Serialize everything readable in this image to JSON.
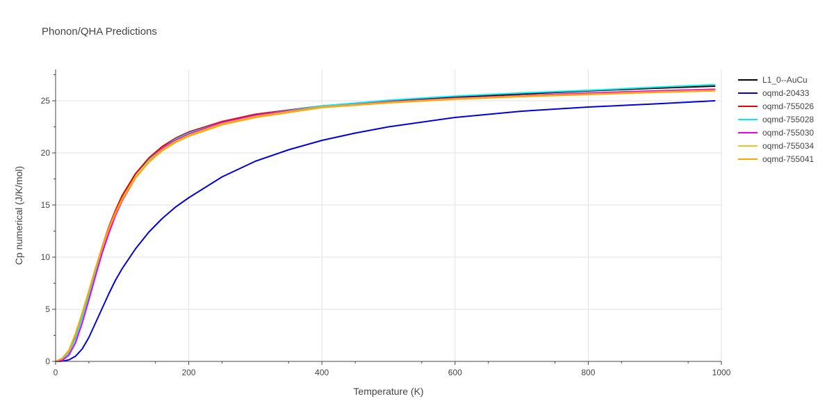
{
  "chart_data": {
    "type": "line",
    "title": "Phonon/QHA Predictions",
    "xlabel": "Temperature (K)",
    "ylabel": "Cp numerical (J/K/mol)",
    "xlim": [
      0,
      1000
    ],
    "ylim": [
      0,
      28
    ],
    "xticks": [
      0,
      200,
      400,
      600,
      800,
      1000
    ],
    "yticks": [
      0,
      5,
      10,
      15,
      20,
      25
    ],
    "grid": true,
    "legend_position": "top-right",
    "series": [
      {
        "name": "L1_0--AuCu",
        "color": "#000000",
        "x": [
          0,
          10,
          20,
          30,
          40,
          50,
          60,
          70,
          80,
          90,
          100,
          120,
          140,
          160,
          180,
          200,
          250,
          300,
          400,
          500,
          600,
          700,
          800,
          900,
          990
        ],
        "y": [
          0,
          0.2,
          0.9,
          2.4,
          4.4,
          6.6,
          8.9,
          11.0,
          12.9,
          14.5,
          15.9,
          18.0,
          19.5,
          20.6,
          21.4,
          22.0,
          23.0,
          23.7,
          24.5,
          25.0,
          25.35,
          25.65,
          25.95,
          26.2,
          26.4
        ]
      },
      {
        "name": "oqmd-20433",
        "color": "#0000dd",
        "x": [
          0,
          10,
          20,
          30,
          40,
          50,
          60,
          70,
          80,
          90,
          100,
          120,
          140,
          160,
          180,
          200,
          250,
          300,
          350,
          400,
          450,
          500,
          600,
          700,
          800,
          900,
          990
        ],
        "y": [
          0,
          0.02,
          0.15,
          0.5,
          1.2,
          2.3,
          3.7,
          5.1,
          6.5,
          7.8,
          8.9,
          10.8,
          12.4,
          13.7,
          14.8,
          15.7,
          17.7,
          19.2,
          20.3,
          21.2,
          21.9,
          22.5,
          23.4,
          24.0,
          24.4,
          24.7,
          25.0
        ]
      },
      {
        "name": "oqmd-755026",
        "color": "#ee0000",
        "x": [
          0,
          10,
          20,
          30,
          40,
          50,
          60,
          70,
          80,
          90,
          100,
          120,
          140,
          160,
          180,
          200,
          250,
          300,
          400,
          500,
          600,
          700,
          800,
          900,
          990
        ],
        "y": [
          0,
          0.2,
          0.9,
          2.4,
          4.4,
          6.6,
          8.9,
          11.0,
          12.9,
          14.5,
          15.9,
          18.0,
          19.5,
          20.6,
          21.4,
          22.0,
          23.0,
          23.7,
          24.5,
          24.9,
          25.25,
          25.5,
          25.7,
          25.9,
          26.1
        ]
      },
      {
        "name": "oqmd-755028",
        "color": "#00eeee",
        "x": [
          0,
          10,
          20,
          30,
          40,
          50,
          60,
          70,
          80,
          90,
          100,
          120,
          140,
          160,
          180,
          200,
          250,
          300,
          400,
          500,
          600,
          700,
          800,
          900,
          990
        ],
        "y": [
          0,
          0.2,
          0.8,
          2.2,
          4.2,
          6.3,
          8.6,
          10.7,
          12.6,
          14.2,
          15.6,
          17.7,
          19.3,
          20.4,
          21.3,
          21.9,
          22.9,
          23.6,
          24.5,
          25.05,
          25.45,
          25.75,
          26.0,
          26.3,
          26.55
        ]
      },
      {
        "name": "oqmd-755030",
        "color": "#ee00ee",
        "x": [
          0,
          10,
          20,
          30,
          40,
          50,
          60,
          70,
          80,
          90,
          100,
          120,
          140,
          160,
          180,
          200,
          250,
          300,
          400,
          500,
          600,
          700,
          800,
          900,
          990
        ],
        "y": [
          0,
          0.1,
          0.6,
          1.8,
          3.7,
          5.9,
          8.2,
          10.4,
          12.3,
          14.0,
          15.4,
          17.6,
          19.2,
          20.4,
          21.2,
          21.8,
          22.9,
          23.6,
          24.4,
          24.9,
          25.25,
          25.5,
          25.75,
          25.95,
          26.1
        ]
      },
      {
        "name": "oqmd-755034",
        "color": "#ffbb22",
        "x": [
          0,
          10,
          20,
          30,
          40,
          50,
          60,
          70,
          80,
          90,
          100,
          120,
          140,
          160,
          180,
          200,
          250,
          300,
          400,
          500,
          600,
          700,
          800,
          900,
          990
        ],
        "y": [
          0,
          0.3,
          1.1,
          2.7,
          4.7,
          6.8,
          9.0,
          11.0,
          12.8,
          14.3,
          15.6,
          17.7,
          19.2,
          20.3,
          21.1,
          21.7,
          22.8,
          23.5,
          24.4,
          24.85,
          25.2,
          25.45,
          25.65,
          25.85,
          26.0
        ]
      },
      {
        "name": "oqmd-755041",
        "color": "#ffa500",
        "x": [
          0,
          10,
          20,
          30,
          40,
          50,
          60,
          70,
          80,
          90,
          100,
          120,
          140,
          160,
          180,
          200,
          250,
          300,
          400,
          500,
          600,
          700,
          800,
          900,
          990
        ],
        "y": [
          0,
          0.3,
          1.0,
          2.6,
          4.6,
          6.7,
          8.9,
          10.9,
          12.7,
          14.2,
          15.5,
          17.6,
          19.1,
          20.2,
          21.0,
          21.6,
          22.7,
          23.4,
          24.35,
          24.8,
          25.15,
          25.4,
          25.6,
          25.8,
          25.95
        ]
      }
    ]
  }
}
